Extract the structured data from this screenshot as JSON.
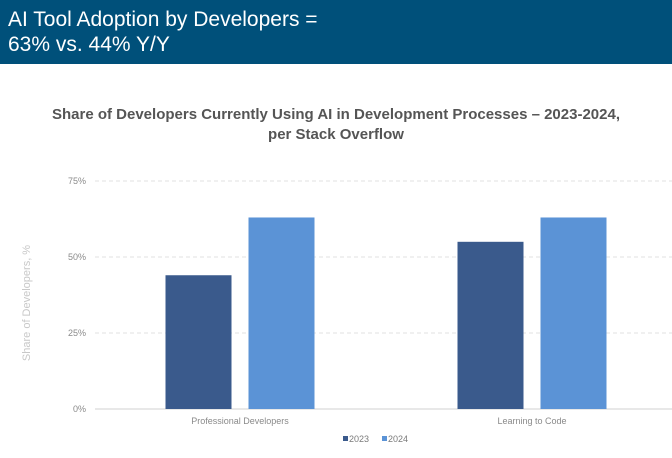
{
  "header": {
    "line1": "AI Tool Adoption by Developers =",
    "line2": "63% vs. 44% Y/Y"
  },
  "chart_data": {
    "type": "bar",
    "title": "Share of Developers Currently Using AI in Development Processes – 2023-2024,",
    "subtitle": "per Stack Overflow",
    "xlabel": "",
    "ylabel": "Share of Developers, %",
    "ylim": [
      0,
      75
    ],
    "yticks": [
      0,
      25,
      50,
      75
    ],
    "ytick_labels": [
      "0%",
      "25%",
      "50%",
      "75%"
    ],
    "grid": true,
    "legend_position": "bottom-center",
    "categories": [
      "Professional Developers",
      "Learning to Code"
    ],
    "series": [
      {
        "name": "2023",
        "values": [
          44,
          55
        ],
        "color": "#3a5a8c"
      },
      {
        "name": "2024",
        "values": [
          63,
          63
        ],
        "color": "#5b93d6"
      }
    ]
  }
}
